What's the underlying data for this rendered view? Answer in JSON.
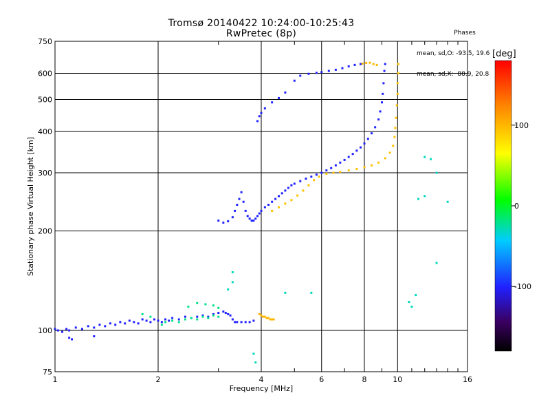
{
  "header": {
    "title": "Tromsø 20140422 10:24:00-10:25:43",
    "subtitle": "RwPretec (8p)"
  },
  "phases_box": {
    "heading": "Phases",
    "line_o": "mean, sd,O: -93.5, 19.6",
    "line_x": "mean, sd,X:  88.9, 20.8"
  },
  "colorbar": {
    "label": "[deg]",
    "min": -180,
    "max": 180,
    "ticks": [
      {
        "value": 100,
        "label": "100"
      },
      {
        "value": 0,
        "label": "0"
      },
      {
        "value": -100,
        "label": "-100"
      }
    ]
  },
  "chart_data": {
    "type": "scatter",
    "title": "Tromsø 20140422 10:24:00-10:25:43",
    "subtitle": "RwPretec (8p)",
    "xlabel": "Frequency [MHz]",
    "ylabel": "Stationary phase Virtual Height [km]",
    "x_scale": "log",
    "y_scale": "log",
    "xlim": [
      1,
      16
    ],
    "ylim": [
      75,
      750
    ],
    "x_ticks": [
      1,
      2,
      4,
      6,
      8,
      10,
      16
    ],
    "y_ticks": [
      75,
      100,
      200,
      300,
      400,
      500,
      600,
      750
    ],
    "grid": true,
    "color_by": "phase (deg)",
    "series": [
      {
        "group": "E-region low trace",
        "phase": -100,
        "points": [
          [
            1.0,
            101
          ],
          [
            1.02,
            100
          ],
          [
            1.05,
            99
          ],
          [
            1.08,
            101
          ],
          [
            1.1,
            100
          ],
          [
            1.15,
            102
          ],
          [
            1.2,
            101
          ],
          [
            1.25,
            103
          ],
          [
            1.3,
            102
          ],
          [
            1.35,
            104
          ],
          [
            1.4,
            103
          ],
          [
            1.45,
            105
          ],
          [
            1.5,
            104
          ],
          [
            1.55,
            106
          ],
          [
            1.6,
            105
          ],
          [
            1.65,
            107
          ],
          [
            1.7,
            106
          ],
          [
            1.75,
            105
          ],
          [
            1.8,
            108
          ],
          [
            1.85,
            107
          ],
          [
            1.9,
            106
          ],
          [
            1.95,
            108
          ],
          [
            2.0,
            107
          ],
          [
            2.05,
            106
          ],
          [
            2.1,
            108
          ],
          [
            2.15,
            107
          ],
          [
            2.2,
            109
          ],
          [
            2.3,
            108
          ],
          [
            2.4,
            110
          ],
          [
            2.5,
            109
          ],
          [
            2.6,
            110
          ],
          [
            2.7,
            111
          ],
          [
            2.8,
            110
          ],
          [
            2.9,
            112
          ],
          [
            3.0,
            113
          ],
          [
            3.1,
            114
          ],
          [
            3.15,
            113
          ],
          [
            3.2,
            112
          ],
          [
            3.25,
            111
          ],
          [
            3.3,
            108
          ],
          [
            3.35,
            106
          ],
          [
            3.4,
            106
          ],
          [
            3.5,
            106
          ],
          [
            3.6,
            106
          ],
          [
            3.7,
            106
          ],
          [
            3.8,
            107
          ],
          [
            1.1,
            95
          ],
          [
            1.12,
            94
          ],
          [
            1.3,
            96
          ]
        ]
      },
      {
        "group": "E-region mid trace",
        "phase": -20,
        "points": [
          [
            2.05,
            104
          ],
          [
            2.1,
            106
          ],
          [
            2.2,
            107
          ],
          [
            2.3,
            106
          ],
          [
            2.4,
            108
          ],
          [
            2.5,
            109
          ],
          [
            2.6,
            108
          ],
          [
            2.7,
            110
          ],
          [
            2.8,
            109
          ],
          [
            2.9,
            111
          ],
          [
            3.0,
            110
          ],
          [
            2.45,
            118
          ],
          [
            2.6,
            121
          ],
          [
            2.75,
            120
          ],
          [
            2.9,
            119
          ],
          [
            3.0,
            117
          ],
          [
            1.8,
            112
          ],
          [
            1.9,
            110
          ]
        ]
      },
      {
        "group": "Es near 4 MHz",
        "phase": 100,
        "points": [
          [
            3.95,
            112
          ],
          [
            4.0,
            111
          ],
          [
            4.05,
            110
          ],
          [
            4.1,
            110
          ],
          [
            4.15,
            109
          ],
          [
            4.2,
            109
          ],
          [
            4.25,
            108
          ],
          [
            4.3,
            108
          ],
          [
            4.35,
            108
          ]
        ]
      },
      {
        "group": "F-region O trace",
        "phase": -100,
        "points": [
          [
            3.0,
            215
          ],
          [
            3.1,
            212
          ],
          [
            3.2,
            214
          ],
          [
            3.3,
            220
          ],
          [
            3.35,
            230
          ],
          [
            3.4,
            240
          ],
          [
            3.45,
            250
          ],
          [
            3.5,
            262
          ],
          [
            3.55,
            245
          ],
          [
            3.6,
            230
          ],
          [
            3.65,
            222
          ],
          [
            3.7,
            218
          ],
          [
            3.75,
            215
          ],
          [
            3.8,
            215
          ],
          [
            3.85,
            218
          ],
          [
            3.9,
            222
          ],
          [
            3.95,
            226
          ],
          [
            4.0,
            230
          ],
          [
            4.1,
            236
          ],
          [
            4.2,
            240
          ],
          [
            4.3,
            245
          ],
          [
            4.4,
            250
          ],
          [
            4.5,
            255
          ],
          [
            4.6,
            260
          ],
          [
            4.7,
            265
          ],
          [
            4.8,
            270
          ],
          [
            4.9,
            275
          ],
          [
            5.0,
            278
          ],
          [
            5.2,
            283
          ],
          [
            5.4,
            288
          ],
          [
            5.6,
            292
          ],
          [
            5.8,
            296
          ],
          [
            6.0,
            300
          ],
          [
            6.2,
            305
          ],
          [
            6.4,
            310
          ],
          [
            6.6,
            316
          ],
          [
            6.8,
            322
          ],
          [
            7.0,
            328
          ],
          [
            7.2,
            335
          ],
          [
            7.4,
            342
          ],
          [
            7.6,
            350
          ],
          [
            7.8,
            358
          ],
          [
            8.0,
            368
          ],
          [
            8.2,
            380
          ],
          [
            8.4,
            395
          ],
          [
            8.6,
            412
          ],
          [
            8.8,
            435
          ],
          [
            8.9,
            460
          ],
          [
            9.0,
            490
          ],
          [
            9.05,
            520
          ],
          [
            9.1,
            560
          ],
          [
            9.15,
            610
          ],
          [
            9.2,
            640
          ]
        ]
      },
      {
        "group": "F-region X trace",
        "phase": 95,
        "points": [
          [
            4.3,
            230
          ],
          [
            4.5,
            236
          ],
          [
            4.7,
            242
          ],
          [
            4.9,
            248
          ],
          [
            5.1,
            256
          ],
          [
            5.3,
            265
          ],
          [
            5.5,
            275
          ],
          [
            5.7,
            285
          ],
          [
            5.9,
            292
          ],
          [
            6.2,
            298
          ],
          [
            6.5,
            300
          ],
          [
            6.8,
            302
          ],
          [
            7.2,
            305
          ],
          [
            7.6,
            308
          ],
          [
            8.0,
            312
          ],
          [
            8.4,
            316
          ],
          [
            8.8,
            322
          ],
          [
            9.2,
            332
          ],
          [
            9.5,
            345
          ],
          [
            9.7,
            362
          ],
          [
            9.8,
            385
          ],
          [
            9.85,
            410
          ],
          [
            9.9,
            440
          ],
          [
            9.95,
            480
          ],
          [
            10.0,
            520
          ],
          [
            10.0,
            560
          ],
          [
            10.05,
            600
          ],
          [
            10.05,
            640
          ]
        ]
      },
      {
        "group": "F2 upper trace",
        "phase": -100,
        "points": [
          [
            3.9,
            430
          ],
          [
            3.95,
            445
          ],
          [
            4.0,
            455
          ],
          [
            4.1,
            470
          ],
          [
            4.3,
            490
          ],
          [
            4.5,
            505
          ],
          [
            4.7,
            525
          ],
          [
            5.0,
            570
          ],
          [
            5.2,
            590
          ],
          [
            5.5,
            598
          ],
          [
            5.8,
            602
          ],
          [
            6.0,
            605
          ],
          [
            6.3,
            610
          ],
          [
            6.6,
            615
          ],
          [
            6.9,
            622
          ],
          [
            7.2,
            630
          ],
          [
            7.5,
            636
          ],
          [
            7.8,
            640
          ]
        ]
      },
      {
        "group": "F2 upper X trace",
        "phase": 100,
        "points": [
          [
            7.9,
            642
          ],
          [
            8.1,
            645
          ],
          [
            8.3,
            646
          ],
          [
            8.5,
            640
          ],
          [
            8.7,
            636
          ]
        ]
      },
      {
        "group": "Scattered echoes",
        "phase": -30,
        "points": [
          [
            3.3,
            150
          ],
          [
            3.3,
            140
          ],
          [
            3.2,
            133
          ],
          [
            4.7,
            130
          ],
          [
            5.6,
            130
          ],
          [
            13.0,
            160
          ],
          [
            12.0,
            335
          ],
          [
            12.5,
            330
          ],
          [
            13.0,
            300
          ],
          [
            11.5,
            250
          ],
          [
            12.0,
            255
          ],
          [
            14.0,
            245
          ],
          [
            3.8,
            85
          ],
          [
            3.85,
            80
          ],
          [
            10.8,
            122
          ],
          [
            11.3,
            128
          ],
          [
            11.0,
            118
          ]
        ]
      }
    ]
  }
}
